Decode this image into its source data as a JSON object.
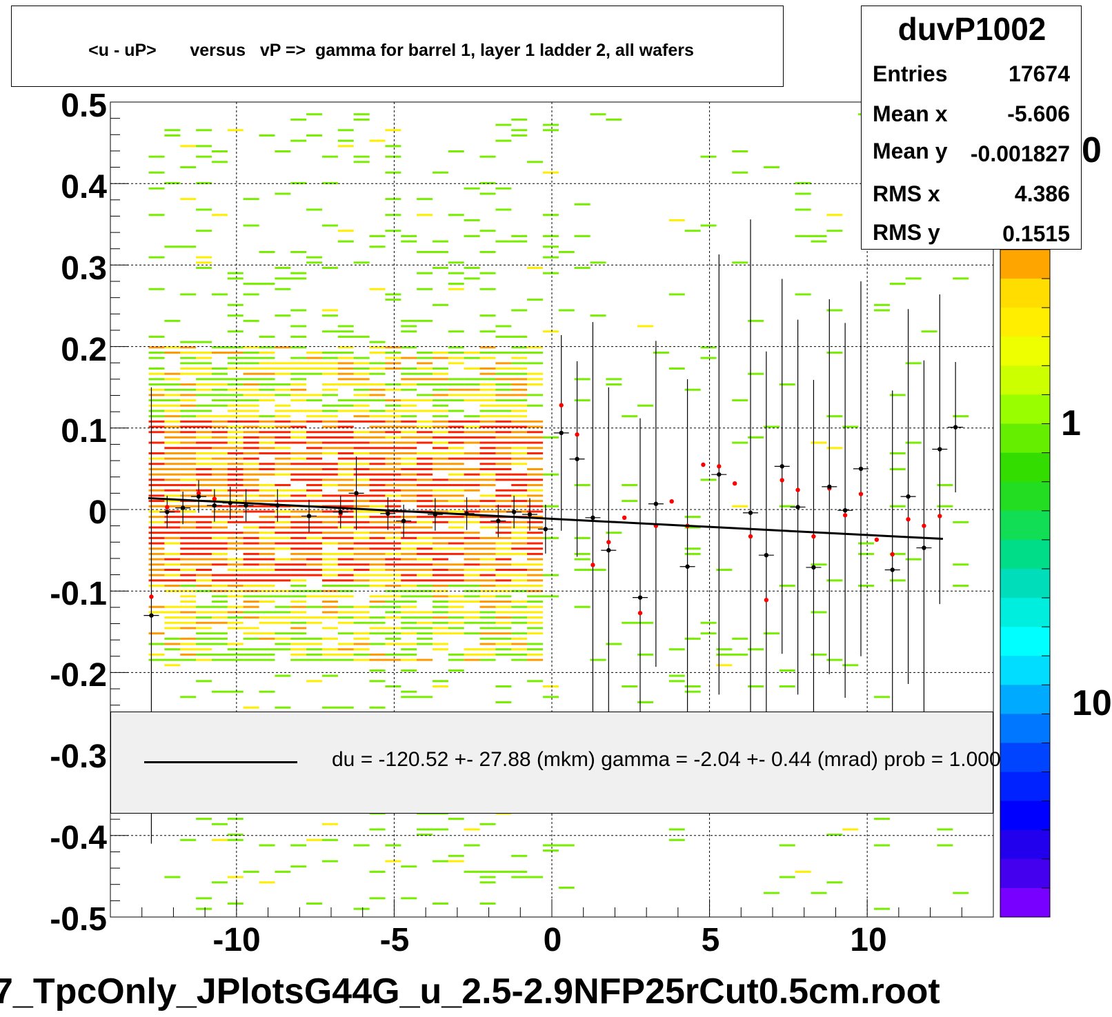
{
  "title": "<u - uP>       versus   vP =>  gamma for barrel 1, layer 1 ladder 2, all wafers",
  "stats": {
    "name": "duvP1002",
    "rows": [
      {
        "label": "Entries",
        "value": "17674"
      },
      {
        "label": "Mean x",
        "value": "-5.606"
      },
      {
        "label": "Mean y",
        "value": "-0.001827"
      },
      {
        "label": "RMS x",
        "value": "4.386"
      },
      {
        "label": "RMS y",
        "value": "0.1515"
      }
    ]
  },
  "legend": {
    "fit_text": "du = -120.52 +- 27.88 (mkm) gamma =   -2.04 +-  0.44 (mrad) prob = 1.000"
  },
  "file_label": "7_TpcOnly_JPlotsG44G_u_2.5-2.9NFP25rCut0.5cm.root",
  "z_axis_labels": [
    "0",
    "1",
    "10"
  ],
  "colors": {
    "dense": "#ff2200",
    "mid": "#ff9900",
    "low": "#ffee00",
    "sparse": "#77ee00",
    "fit_line": "#000000",
    "point_black": "#000000",
    "point_red": "#ff0000"
  },
  "chart_data": {
    "type": "heatmap",
    "title": "<u - uP>       versus   vP =>  gamma for barrel 1, layer 1 ladder 2, all wafers",
    "xlabel": "",
    "ylabel": "",
    "xlim": [
      -14,
      14
    ],
    "ylim": [
      -0.5,
      0.5
    ],
    "x_ticks": [
      -10,
      -5,
      0,
      5,
      10
    ],
    "y_ticks": [
      0.5,
      0.4,
      0.3,
      0.2,
      0.1,
      0,
      -0.1,
      -0.2,
      -0.3,
      -0.4,
      -0.5
    ],
    "x_tick_labels": [
      "-10",
      "-5",
      "0",
      "5",
      "10"
    ],
    "y_tick_labels": [
      "0.5",
      "0.4",
      "0.3",
      "0.2",
      "0.1",
      "0",
      "-0.1",
      "-0.2",
      "-0.3",
      "-0.4",
      "-0.5"
    ],
    "grid": true,
    "fit_line": {
      "x": [
        -12.8,
        12.4
      ],
      "y": [
        0.014,
        -0.036
      ]
    },
    "profile_points": [
      {
        "x": -12.7,
        "y": -0.13,
        "err": 0.28
      },
      {
        "x": -12.2,
        "y": -0.003,
        "err": 0.02
      },
      {
        "x": -11.7,
        "y": 0.002,
        "err": 0.02
      },
      {
        "x": -11.2,
        "y": 0.016,
        "err": 0.02
      },
      {
        "x": -10.7,
        "y": 0.005,
        "err": 0.02
      },
      {
        "x": -10.2,
        "y": 0.008,
        "err": 0.02
      },
      {
        "x": -9.7,
        "y": 0.005,
        "err": 0.02
      },
      {
        "x": -8.7,
        "y": 0.005,
        "err": 0.02
      },
      {
        "x": -7.7,
        "y": -0.008,
        "err": 0.02
      },
      {
        "x": -6.7,
        "y": -0.003,
        "err": 0.02
      },
      {
        "x": -6.2,
        "y": 0.02,
        "err": 0.045
      },
      {
        "x": -5.2,
        "y": -0.005,
        "err": 0.02
      },
      {
        "x": -4.7,
        "y": -0.014,
        "err": 0.02
      },
      {
        "x": -3.7,
        "y": -0.006,
        "err": 0.02
      },
      {
        "x": -2.7,
        "y": -0.005,
        "err": 0.02
      },
      {
        "x": -1.7,
        "y": -0.014,
        "err": 0.02
      },
      {
        "x": -1.2,
        "y": -0.003,
        "err": 0.02
      },
      {
        "x": -0.7,
        "y": -0.006,
        "err": 0.02
      },
      {
        "x": -0.2,
        "y": -0.024,
        "err": 0.03
      },
      {
        "x": 0.3,
        "y": 0.094,
        "err": 0.12
      },
      {
        "x": 0.8,
        "y": 0.062,
        "err": 0.12
      },
      {
        "x": 1.3,
        "y": -0.01,
        "err": 0.24
      },
      {
        "x": 1.8,
        "y": -0.05,
        "err": 0.2
      },
      {
        "x": 2.8,
        "y": -0.108,
        "err": 0.22
      },
      {
        "x": 3.3,
        "y": 0.007,
        "err": 0.2
      },
      {
        "x": 4.3,
        "y": -0.07,
        "err": 0.23
      },
      {
        "x": 5.3,
        "y": 0.043,
        "err": 0.27
      },
      {
        "x": 6.3,
        "y": -0.004,
        "err": 0.36
      },
      {
        "x": 6.8,
        "y": -0.056,
        "err": 0.25
      },
      {
        "x": 7.3,
        "y": 0.053,
        "err": 0.23
      },
      {
        "x": 7.8,
        "y": 0.003,
        "err": 0.23
      },
      {
        "x": 8.3,
        "y": -0.071,
        "err": 0.23
      },
      {
        "x": 8.8,
        "y": 0.028,
        "err": 0.23
      },
      {
        "x": 9.3,
        "y": -0.001,
        "err": 0.23
      },
      {
        "x": 9.8,
        "y": 0.05,
        "err": 0.23
      },
      {
        "x": 10.8,
        "y": -0.074,
        "err": 0.22
      },
      {
        "x": 11.3,
        "y": 0.016,
        "err": 0.23
      },
      {
        "x": 11.8,
        "y": -0.047,
        "err": 0.23
      },
      {
        "x": 12.3,
        "y": 0.074,
        "err": 0.19
      },
      {
        "x": 12.8,
        "y": 0.101,
        "err": 0.08
      }
    ],
    "secondary_points": [
      {
        "x": -12.7,
        "y": -0.107
      },
      {
        "x": -12.2,
        "y": 0.003
      },
      {
        "x": -11.2,
        "y": 0.02
      },
      {
        "x": -10.7,
        "y": 0.013
      },
      {
        "x": -6.7,
        "y": -0.005
      },
      {
        "x": -6.2,
        "y": 0.02
      },
      {
        "x": 0.3,
        "y": 0.128
      },
      {
        "x": 0.8,
        "y": 0.092
      },
      {
        "x": 1.3,
        "y": -0.068
      },
      {
        "x": 1.8,
        "y": -0.04
      },
      {
        "x": 2.3,
        "y": -0.01
      },
      {
        "x": 2.8,
        "y": -0.127
      },
      {
        "x": 3.3,
        "y": -0.02
      },
      {
        "x": 3.8,
        "y": 0.01
      },
      {
        "x": 4.3,
        "y": -0.02
      },
      {
        "x": 4.8,
        "y": 0.055
      },
      {
        "x": 5.3,
        "y": 0.053
      },
      {
        "x": 5.8,
        "y": 0.032
      },
      {
        "x": 6.3,
        "y": -0.033
      },
      {
        "x": 6.8,
        "y": -0.111
      },
      {
        "x": 7.3,
        "y": 0.036
      },
      {
        "x": 7.8,
        "y": 0.024
      },
      {
        "x": 8.3,
        "y": -0.033
      },
      {
        "x": 8.8,
        "y": 0.026
      },
      {
        "x": 9.3,
        "y": -0.007
      },
      {
        "x": 9.8,
        "y": 0.019
      },
      {
        "x": 10.3,
        "y": -0.037
      },
      {
        "x": 10.8,
        "y": -0.055
      },
      {
        "x": 11.3,
        "y": -0.012
      },
      {
        "x": 11.8,
        "y": -0.02
      },
      {
        "x": 12.3,
        "y": -0.008
      }
    ]
  }
}
